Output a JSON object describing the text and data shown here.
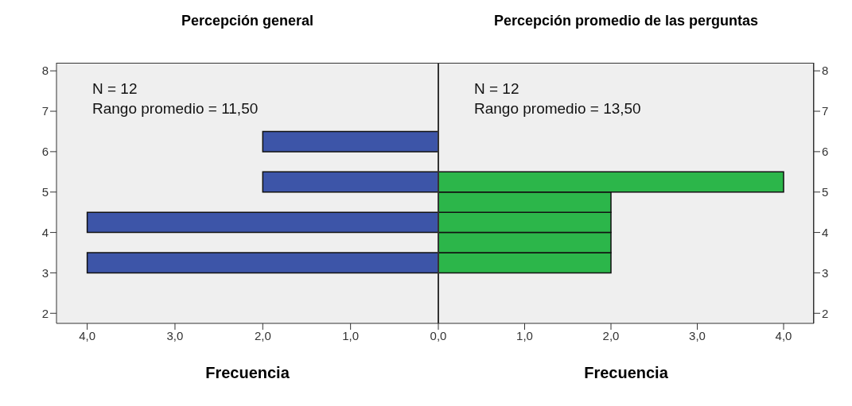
{
  "chart_data": [
    {
      "type": "histogram",
      "orientation": "horizontal",
      "title": "Percepción general",
      "xlabel": "Frecuencia",
      "annotations": [
        "N = 12",
        "Rango promedio = 11,50"
      ],
      "bins": [
        3,
        3.5,
        4,
        4.5,
        5,
        5.5,
        6,
        6.5
      ],
      "values": [
        4,
        0,
        4,
        0,
        2,
        0,
        2
      ],
      "color": "#3d55a8",
      "xlim": [
        4.35,
        0
      ],
      "xticks": [
        {
          "value": 4,
          "label": "4,0"
        },
        {
          "value": 3,
          "label": "3,0"
        },
        {
          "value": 2,
          "label": "2,0"
        },
        {
          "value": 1,
          "label": "1,0"
        },
        {
          "value": 0,
          "label": "0,0"
        }
      ],
      "ylim": [
        1.75,
        8.2
      ],
      "yticks": [
        2,
        3,
        4,
        5,
        6,
        7,
        8
      ]
    },
    {
      "type": "histogram",
      "orientation": "horizontal",
      "title": "Percepción promedio de las perguntas",
      "xlabel": "Frecuencia",
      "annotations": [
        "N = 12",
        "Rango promedio = 13,50"
      ],
      "bins": [
        3,
        3.5,
        4,
        4.5,
        5,
        5.5
      ],
      "values": [
        2,
        2,
        2,
        2,
        4
      ],
      "color": "#2cb64a",
      "xlim": [
        0,
        4.35
      ],
      "xticks": [
        {
          "value": 1,
          "label": "1,0"
        },
        {
          "value": 2,
          "label": "2,0"
        },
        {
          "value": 3,
          "label": "3,0"
        },
        {
          "value": 4,
          "label": "4,0"
        }
      ],
      "ylim": [
        1.75,
        8.2
      ],
      "yticks": [
        2,
        3,
        4,
        5,
        6,
        7,
        8
      ]
    }
  ]
}
